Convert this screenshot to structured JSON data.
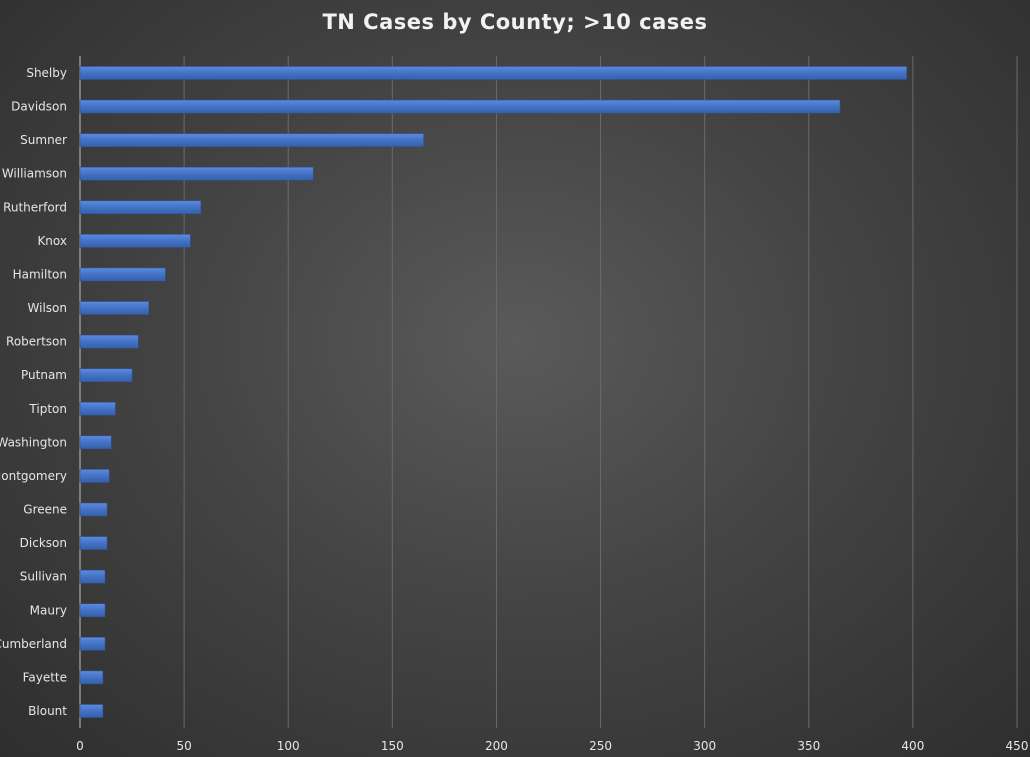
{
  "chart_data": {
    "type": "bar",
    "orientation": "horizontal",
    "title": "TN Cases by County;  >10 cases",
    "categories": [
      "Shelby",
      "Davidson",
      "Sumner",
      "Williamson",
      "Rutherford",
      "Knox",
      "Hamilton",
      "Wilson",
      "Robertson",
      "Putnam",
      "Tipton",
      "Washington",
      "Montgomery",
      "Greene",
      "Dickson",
      "Sullivan",
      "Maury",
      "Cumberland",
      "Fayette",
      "Blount"
    ],
    "values": [
      397,
      365,
      165,
      112,
      58,
      53,
      41,
      33,
      28,
      25,
      17,
      15,
      14,
      13,
      13,
      12,
      12,
      12,
      11,
      11
    ],
    "xlim": [
      0,
      450
    ],
    "xticks": [
      0,
      50,
      100,
      150,
      200,
      250,
      300,
      350,
      400,
      450
    ],
    "xlabel": "",
    "ylabel": "",
    "grid": "vertical",
    "bar_color": "#4472c4"
  }
}
